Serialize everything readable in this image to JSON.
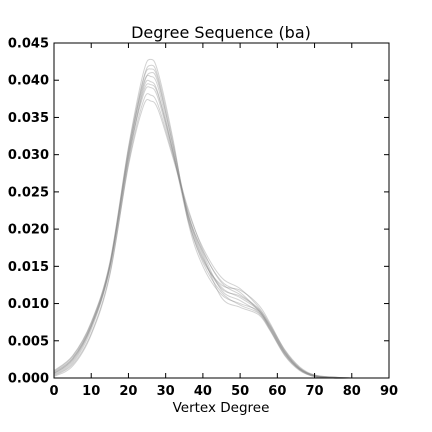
{
  "chart_data": {
    "type": "line",
    "title": "Degree Sequence (ba)",
    "xlabel": "Vertex Degree",
    "ylabel": "",
    "xlim": [
      0,
      90
    ],
    "ylim": [
      0,
      0.045
    ],
    "xticks": [
      "0",
      "10",
      "20",
      "30",
      "40",
      "50",
      "60",
      "70",
      "80",
      "90"
    ],
    "yticks": [
      "0.000",
      "0.005",
      "0.010",
      "0.015",
      "0.020",
      "0.025",
      "0.030",
      "0.035",
      "0.040",
      "0.045"
    ],
    "grid": false,
    "line_color": "#888888",
    "series": [
      {
        "x": [
          0,
          5,
          10,
          15,
          20,
          24,
          26,
          28,
          32,
          36,
          40,
          45,
          50,
          55,
          58,
          62,
          66,
          70,
          75,
          80
        ],
        "y": [
          0.0006,
          0.0025,
          0.007,
          0.015,
          0.03,
          0.04,
          0.0415,
          0.04,
          0.031,
          0.0215,
          0.016,
          0.012,
          0.011,
          0.0092,
          0.0068,
          0.0034,
          0.0012,
          0.0003,
          0.0001,
          0.0
        ]
      },
      {
        "x": [
          0,
          5,
          10,
          15,
          20,
          24,
          26,
          28,
          32,
          36,
          40,
          45,
          50,
          55,
          58,
          62,
          66,
          70,
          75,
          80
        ],
        "y": [
          0.0004,
          0.002,
          0.0065,
          0.0148,
          0.0295,
          0.038,
          0.039,
          0.0375,
          0.03,
          0.022,
          0.017,
          0.013,
          0.0115,
          0.009,
          0.007,
          0.0036,
          0.0013,
          0.0003,
          0.0001,
          0.0
        ]
      },
      {
        "x": [
          0,
          5,
          10,
          15,
          20,
          24,
          26,
          28,
          32,
          36,
          40,
          45,
          50,
          55,
          58,
          62,
          66,
          70,
          75,
          80
        ],
        "y": [
          0.001,
          0.003,
          0.0075,
          0.0155,
          0.031,
          0.041,
          0.0428,
          0.041,
          0.032,
          0.021,
          0.015,
          0.0112,
          0.01,
          0.009,
          0.0066,
          0.0032,
          0.0011,
          0.0002,
          0.0,
          0.0
        ]
      },
      {
        "x": [
          0,
          5,
          10,
          15,
          20,
          24,
          26,
          28,
          32,
          36,
          40,
          45,
          50,
          55,
          58,
          62,
          66,
          70,
          75,
          80
        ],
        "y": [
          0.0003,
          0.0018,
          0.006,
          0.014,
          0.0285,
          0.0365,
          0.0372,
          0.036,
          0.0295,
          0.0225,
          0.0175,
          0.0135,
          0.012,
          0.0095,
          0.0072,
          0.0038,
          0.0015,
          0.0004,
          0.0001,
          0.0
        ]
      },
      {
        "x": [
          0,
          5,
          10,
          15,
          20,
          24,
          26,
          28,
          32,
          36,
          40,
          45,
          50,
          55,
          58,
          62,
          66,
          70,
          75,
          80
        ],
        "y": [
          0.0008,
          0.0027,
          0.0072,
          0.0152,
          0.0305,
          0.0395,
          0.0405,
          0.039,
          0.0305,
          0.0218,
          0.0165,
          0.0108,
          0.0095,
          0.0085,
          0.0064,
          0.003,
          0.001,
          0.0002,
          0.0,
          0.0
        ]
      },
      {
        "x": [
          0,
          5,
          10,
          15,
          20,
          24,
          26,
          28,
          32,
          36,
          40,
          45,
          50,
          55,
          58,
          62,
          66,
          70,
          75,
          80
        ],
        "y": [
          0.0005,
          0.0022,
          0.0068,
          0.0146,
          0.0292,
          0.0388,
          0.0398,
          0.0382,
          0.0302,
          0.0212,
          0.0158,
          0.0125,
          0.0118,
          0.0098,
          0.0074,
          0.0037,
          0.0014,
          0.0003,
          0.0001,
          0.0
        ]
      },
      {
        "x": [
          0,
          5,
          10,
          15,
          20,
          24,
          26,
          28,
          32,
          36,
          40,
          45,
          50,
          55,
          58,
          62,
          66,
          70,
          75,
          80
        ],
        "y": [
          0.0007,
          0.0026,
          0.0071,
          0.0151,
          0.0302,
          0.0392,
          0.041,
          0.0396,
          0.0312,
          0.0222,
          0.0168,
          0.0118,
          0.0104,
          0.0088,
          0.0067,
          0.0033,
          0.0012,
          0.0003,
          0.0,
          0.0
        ]
      },
      {
        "x": [
          0,
          5,
          10,
          15,
          20,
          24,
          26,
          28,
          32,
          36,
          40,
          45,
          50,
          55,
          58,
          62,
          66,
          70,
          75,
          80
        ],
        "y": [
          0.0002,
          0.0016,
          0.0058,
          0.0138,
          0.0288,
          0.0372,
          0.038,
          0.0366,
          0.0298,
          0.0228,
          0.0172,
          0.0128,
          0.0112,
          0.0093,
          0.0071,
          0.0035,
          0.0013,
          0.0004,
          0.0001,
          0.0
        ]
      },
      {
        "x": [
          0,
          5,
          10,
          15,
          20,
          24,
          26,
          28,
          32,
          36,
          40,
          45,
          50,
          55,
          58,
          62,
          66,
          70,
          75,
          80
        ],
        "y": [
          0.0009,
          0.0029,
          0.0074,
          0.0154,
          0.0308,
          0.0402,
          0.042,
          0.0404,
          0.0316,
          0.0214,
          0.0155,
          0.0115,
          0.0098,
          0.0087,
          0.0065,
          0.0031,
          0.0011,
          0.0002,
          0.0,
          0.0
        ]
      },
      {
        "x": [
          0,
          5,
          10,
          15,
          20,
          24,
          26,
          28,
          32,
          36,
          40,
          45,
          50,
          55,
          58,
          62,
          66,
          70,
          75,
          80
        ],
        "y": [
          0.0006,
          0.0024,
          0.0069,
          0.0149,
          0.0298,
          0.0384,
          0.0394,
          0.038,
          0.0304,
          0.0219,
          0.0162,
          0.0122,
          0.0108,
          0.0091,
          0.0069,
          0.0034,
          0.0012,
          0.0003,
          0.0001,
          0.0
        ]
      }
    ]
  }
}
